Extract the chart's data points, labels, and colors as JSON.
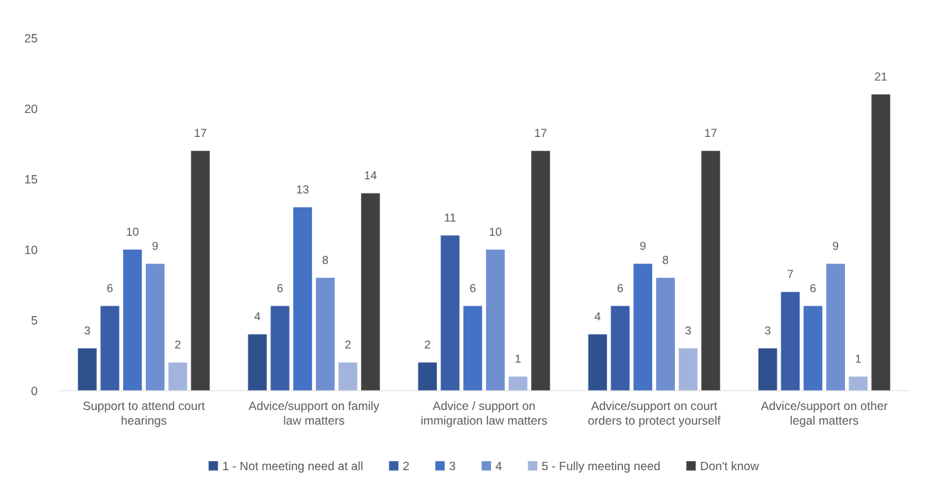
{
  "chart_data": {
    "type": "bar",
    "categories": [
      "Support to attend court hearings",
      "Advice/support on family law matters",
      "Advice / support on immigration law matters",
      "Advice/support on court orders to protect yourself",
      "Advice/support on other legal matters"
    ],
    "series": [
      {
        "name": "1 - Not meeting need at all",
        "color": "#2f528f",
        "values": [
          3,
          4,
          2,
          4,
          3
        ]
      },
      {
        "name": "2",
        "color": "#3a5ea8",
        "values": [
          6,
          6,
          11,
          6,
          7
        ]
      },
      {
        "name": "3",
        "color": "#4472c4",
        "values": [
          10,
          13,
          6,
          9,
          6
        ]
      },
      {
        "name": "4",
        "color": "#6f8fd1",
        "values": [
          9,
          8,
          10,
          8,
          9
        ]
      },
      {
        "name": "5 - Fully meeting need",
        "color": "#a2b4dd",
        "values": [
          2,
          2,
          1,
          3,
          1
        ]
      },
      {
        "name": "Don't know",
        "color": "#404040",
        "values": [
          17,
          14,
          17,
          17,
          21
        ]
      }
    ],
    "ylim": [
      0,
      25
    ],
    "yticks": [
      0,
      5,
      10,
      15,
      20,
      25
    ],
    "grid": false,
    "legend": "bottom",
    "data_labels": true
  }
}
